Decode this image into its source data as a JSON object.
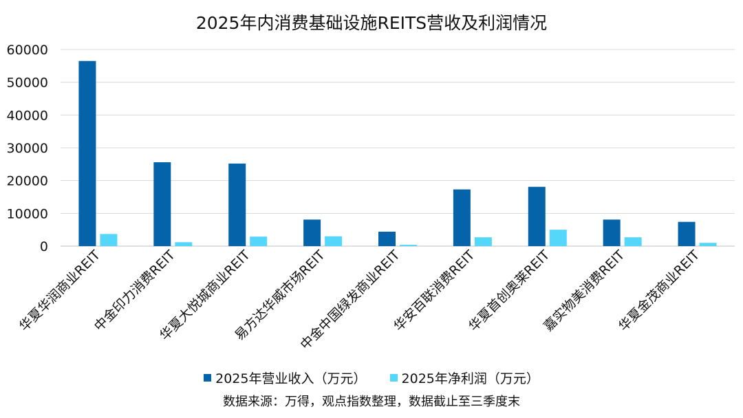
{
  "chart_data": {
    "type": "bar",
    "title": "2025年内消费基础设施REITS营收及利润情况",
    "categories": [
      "华夏华润商业REIT",
      "中金印力消费REIT",
      "华夏大悦城商业REIT",
      "易方达华威市场REIT",
      "中金中国绿发商业REIT",
      "华安百联消费REIT",
      "华夏首创奥莱REIT",
      "嘉实物美消费REIT",
      "华夏金茂商业REIT"
    ],
    "series": [
      {
        "name": "2025年营业收入（万元）",
        "color": "#0563AA",
        "values": [
          56500,
          25600,
          25200,
          8100,
          4400,
          17300,
          18100,
          8100,
          7400
        ]
      },
      {
        "name": "2025年净利润（万元）",
        "color": "#55D6FB",
        "values": [
          3700,
          1200,
          2900,
          3000,
          400,
          2700,
          5000,
          2700,
          1000
        ]
      }
    ],
    "ylim": [
      0,
      60000
    ],
    "yticks": [
      0,
      10000,
      20000,
      30000,
      40000,
      50000,
      60000
    ],
    "xlabel": "",
    "ylabel": "",
    "grid": true,
    "legend": "bottom"
  },
  "source_note": "数据来源：万得，观点指数整理，数据截止至三季度末"
}
